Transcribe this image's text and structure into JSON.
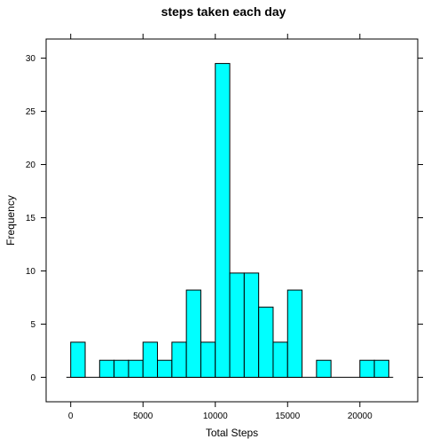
{
  "chart_data": {
    "type": "bar",
    "title": "steps taken each day",
    "xlabel": "Total Steps",
    "ylabel": "Frequency",
    "bin_width": 1000,
    "bins": [
      {
        "x0": 0,
        "x1": 1000,
        "value": 3.3
      },
      {
        "x0": 1000,
        "x1": 2000,
        "value": 0
      },
      {
        "x0": 2000,
        "x1": 3000,
        "value": 1.6
      },
      {
        "x0": 3000,
        "x1": 4000,
        "value": 1.6
      },
      {
        "x0": 4000,
        "x1": 5000,
        "value": 1.6
      },
      {
        "x0": 5000,
        "x1": 6000,
        "value": 3.3
      },
      {
        "x0": 6000,
        "x1": 7000,
        "value": 1.6
      },
      {
        "x0": 7000,
        "x1": 8000,
        "value": 3.3
      },
      {
        "x0": 8000,
        "x1": 9000,
        "value": 8.2
      },
      {
        "x0": 9000,
        "x1": 10000,
        "value": 3.3
      },
      {
        "x0": 10000,
        "x1": 11000,
        "value": 29.5
      },
      {
        "x0": 11000,
        "x1": 12000,
        "value": 9.8
      },
      {
        "x0": 12000,
        "x1": 13000,
        "value": 9.8
      },
      {
        "x0": 13000,
        "x1": 14000,
        "value": 6.6
      },
      {
        "x0": 14000,
        "x1": 15000,
        "value": 3.3
      },
      {
        "x0": 15000,
        "x1": 16000,
        "value": 8.2
      },
      {
        "x0": 16000,
        "x1": 17000,
        "value": 0
      },
      {
        "x0": 17000,
        "x1": 18000,
        "value": 1.6
      },
      {
        "x0": 18000,
        "x1": 19000,
        "value": 0
      },
      {
        "x0": 19000,
        "x1": 20000,
        "value": 0
      },
      {
        "x0": 20000,
        "x1": 21000,
        "value": 1.6
      },
      {
        "x0": 21000,
        "x1": 22000,
        "value": 1.6
      }
    ],
    "xlim": [
      -1700,
      24000
    ],
    "ylim": [
      -2.3,
      31.8
    ],
    "xticks": [
      0,
      5000,
      10000,
      15000,
      20000
    ],
    "xtick_labels": [
      "0",
      "5000",
      "10000",
      "15000",
      "20000"
    ],
    "yticks": [
      0,
      5,
      10,
      15,
      20,
      25,
      30
    ],
    "ytick_labels": [
      "0",
      "5",
      "10",
      "15",
      "20",
      "25",
      "30"
    ],
    "grid": false,
    "bar_color": "#00ffff",
    "edge_color": "#000000"
  }
}
